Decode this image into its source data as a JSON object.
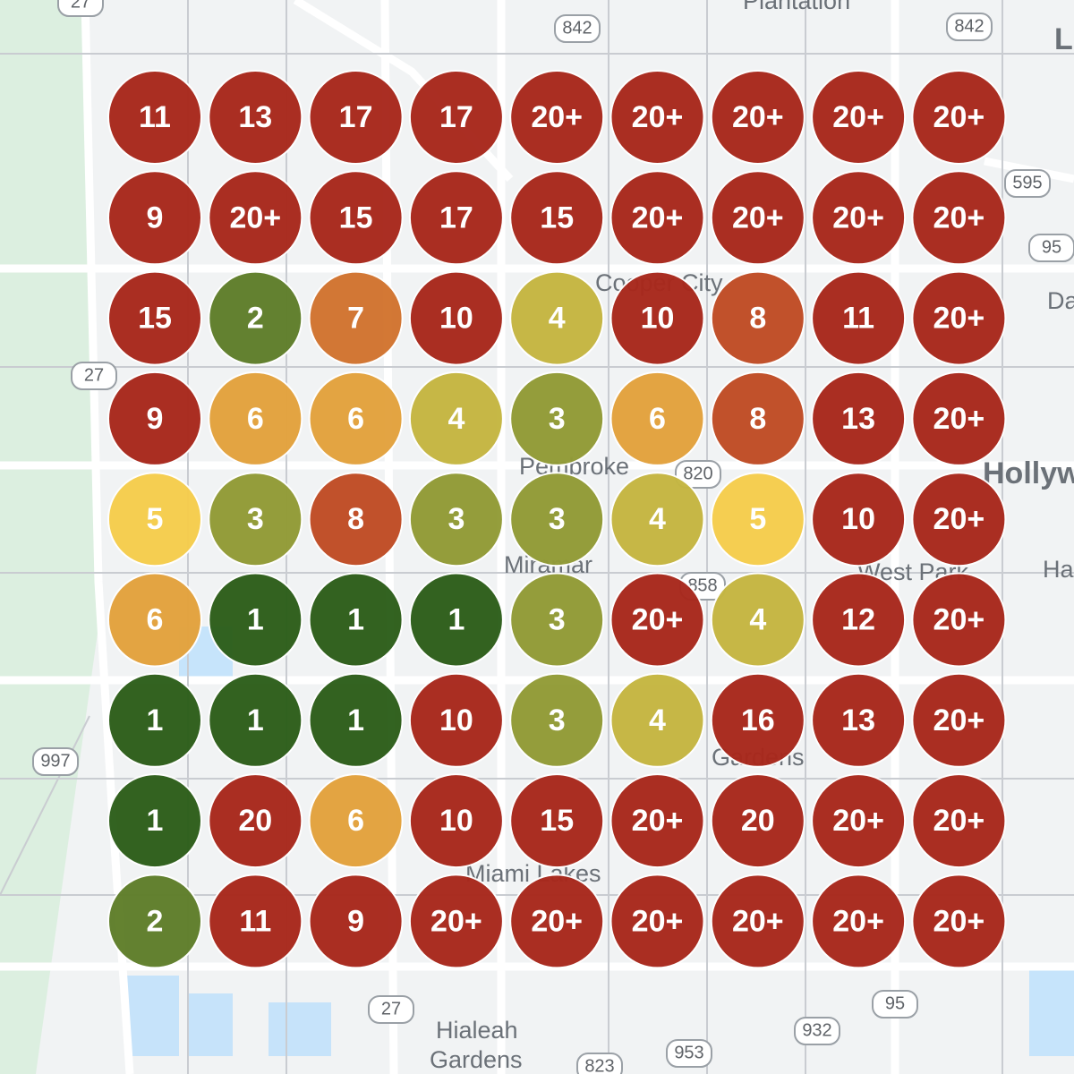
{
  "map_labels": [
    "Plantation",
    "Hollyw",
    "Miramar",
    "Pembroke",
    "Cooper City",
    "West Park",
    "Miami Lakes",
    "Gardens",
    "Hialeah",
    "Gardens",
    "Da",
    "Ha",
    "L"
  ],
  "road_shields": [
    "27",
    "842",
    "842",
    "595",
    "95",
    "27",
    "997",
    "820",
    "858",
    "27",
    "932",
    "953",
    "95",
    "823"
  ],
  "grid": [
    [
      "11",
      "13",
      "17",
      "17",
      "20+",
      "20+",
      "20+",
      "20+",
      "20+"
    ],
    [
      "9",
      "20+",
      "15",
      "17",
      "15",
      "20+",
      "20+",
      "20+",
      "20+"
    ],
    [
      "15",
      "2",
      "7",
      "10",
      "4",
      "10",
      "8",
      "11",
      "20+"
    ],
    [
      "9",
      "6",
      "6",
      "4",
      "3",
      "6",
      "8",
      "13",
      "20+"
    ],
    [
      "5",
      "3",
      "8",
      "3",
      "3",
      "4",
      "5",
      "10",
      "20+"
    ],
    [
      "6",
      "1",
      "1",
      "1",
      "3",
      "20+",
      "4",
      "12",
      "20+"
    ],
    [
      "1",
      "1",
      "1",
      "10",
      "3",
      "4",
      "16",
      "13",
      "20+"
    ],
    [
      "1",
      "20",
      "6",
      "10",
      "15",
      "20+",
      "20",
      "20+",
      "20+"
    ],
    [
      "2",
      "11",
      "9",
      "20+",
      "20+",
      "20+",
      "20+",
      "20+",
      "20+"
    ]
  ]
}
